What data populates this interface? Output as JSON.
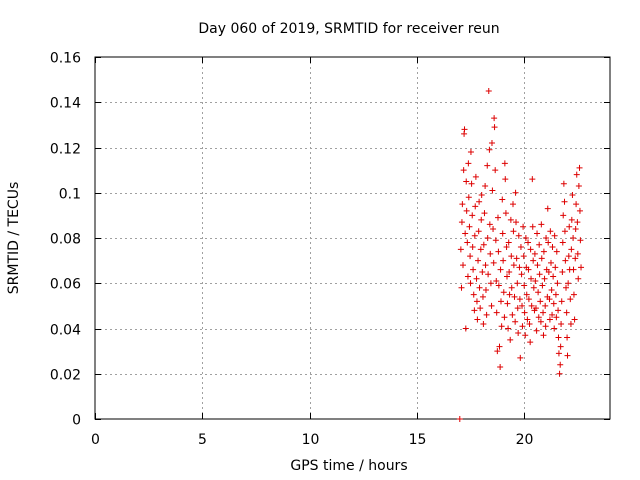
{
  "chart_data": {
    "type": "scatter",
    "title": "Day 060 of 2019, SRMTID for receiver reun",
    "xlabel": "GPS time / hours",
    "ylabel": "SRMTID / TECUs",
    "xlim": [
      0,
      24
    ],
    "ylim": [
      0,
      0.16
    ],
    "xticks": [
      0,
      5,
      10,
      15,
      20
    ],
    "xtick_labels": [
      "0",
      "5",
      "10",
      "15",
      "20"
    ],
    "yticks": [
      0,
      0.02,
      0.04,
      0.06,
      0.08,
      0.1,
      0.12,
      0.14,
      0.16
    ],
    "ytick_labels": [
      "0",
      "0.02",
      "0.04",
      "0.06",
      "0.08",
      "0.1",
      "0.12",
      "0.14",
      "0.16"
    ],
    "grid": true,
    "marker": "plus",
    "color": "#dd0000",
    "series": [
      {
        "name": "SRMTID",
        "points": [
          [
            17.0,
            0.0
          ],
          [
            17.05,
            0.075
          ],
          [
            17.08,
            0.058
          ],
          [
            17.1,
            0.087
          ],
          [
            17.12,
            0.095
          ],
          [
            17.15,
            0.068
          ],
          [
            17.18,
            0.11
          ],
          [
            17.2,
            0.126
          ],
          [
            17.22,
            0.128
          ],
          [
            17.25,
            0.082
          ],
          [
            17.28,
            0.04
          ],
          [
            17.3,
            0.105
          ],
          [
            17.32,
            0.092
          ],
          [
            17.35,
            0.078
          ],
          [
            17.38,
            0.063
          ],
          [
            17.4,
            0.113
          ],
          [
            17.42,
            0.098
          ],
          [
            17.45,
            0.085
          ],
          [
            17.48,
            0.072
          ],
          [
            17.5,
            0.06
          ],
          [
            17.52,
            0.118
          ],
          [
            17.55,
            0.104
          ],
          [
            17.58,
            0.09
          ],
          [
            17.6,
            0.076
          ],
          [
            17.62,
            0.066
          ],
          [
            17.65,
            0.055
          ],
          [
            17.68,
            0.048
          ],
          [
            17.7,
            0.081
          ],
          [
            17.72,
            0.094
          ],
          [
            17.75,
            0.107
          ],
          [
            17.78,
            0.062
          ],
          [
            17.8,
            0.052
          ],
          [
            17.82,
            0.044
          ],
          [
            17.85,
            0.07
          ],
          [
            17.88,
            0.083
          ],
          [
            17.9,
            0.096
          ],
          [
            17.92,
            0.058
          ],
          [
            17.95,
            0.049
          ],
          [
            17.98,
            0.075
          ],
          [
            18.0,
            0.088
          ],
          [
            18.02,
            0.099
          ],
          [
            18.05,
            0.065
          ],
          [
            18.08,
            0.054
          ],
          [
            18.1,
            0.042
          ],
          [
            18.12,
            0.077
          ],
          [
            18.15,
            0.091
          ],
          [
            18.18,
            0.103
          ],
          [
            18.2,
            0.068
          ],
          [
            18.22,
            0.057
          ],
          [
            18.25,
            0.046
          ],
          [
            18.28,
            0.112
          ],
          [
            18.3,
            0.08
          ],
          [
            18.32,
            0.064
          ],
          [
            18.35,
            0.145
          ],
          [
            18.38,
            0.119
          ],
          [
            18.4,
            0.086
          ],
          [
            18.42,
            0.073
          ],
          [
            18.45,
            0.06
          ],
          [
            18.48,
            0.05
          ],
          [
            18.5,
            0.122
          ],
          [
            18.52,
            0.101
          ],
          [
            18.55,
            0.084
          ],
          [
            18.58,
            0.069
          ],
          [
            18.6,
            0.133
          ],
          [
            18.62,
            0.129
          ],
          [
            18.65,
            0.11
          ],
          [
            18.68,
            0.079
          ],
          [
            18.7,
            0.061
          ],
          [
            18.72,
            0.047
          ],
          [
            18.75,
            0.03
          ],
          [
            18.78,
            0.089
          ],
          [
            18.8,
            0.074
          ],
          [
            18.82,
            0.059
          ],
          [
            18.85,
            0.032
          ],
          [
            18.88,
            0.023
          ],
          [
            18.9,
            0.066
          ],
          [
            18.92,
            0.052
          ],
          [
            18.95,
            0.041
          ],
          [
            18.98,
            0.097
          ],
          [
            19.0,
            0.082
          ],
          [
            19.02,
            0.07
          ],
          [
            19.05,
            0.056
          ],
          [
            19.08,
            0.045
          ],
          [
            19.1,
            0.113
          ],
          [
            19.12,
            0.106
          ],
          [
            19.15,
            0.091
          ],
          [
            19.18,
            0.076
          ],
          [
            19.2,
            0.063
          ],
          [
            19.22,
            0.051
          ],
          [
            19.25,
            0.04
          ],
          [
            19.28,
            0.078
          ],
          [
            19.3,
            0.065
          ],
          [
            19.32,
            0.055
          ],
          [
            19.35,
            0.035
          ],
          [
            19.38,
            0.088
          ],
          [
            19.4,
            0.072
          ],
          [
            19.42,
            0.058
          ],
          [
            19.45,
            0.046
          ],
          [
            19.48,
            0.095
          ],
          [
            19.5,
            0.083
          ],
          [
            19.52,
            0.068
          ],
          [
            19.55,
            0.054
          ],
          [
            19.58,
            0.043
          ],
          [
            19.6,
            0.1
          ],
          [
            19.62,
            0.087
          ],
          [
            19.65,
            0.071
          ],
          [
            19.68,
            0.06
          ],
          [
            19.7,
            0.049
          ],
          [
            19.72,
            0.038
          ],
          [
            19.75,
            0.081
          ],
          [
            19.78,
            0.067
          ],
          [
            19.8,
            0.053
          ],
          [
            19.82,
            0.027
          ],
          [
            19.85,
            0.076
          ],
          [
            19.88,
            0.064
          ],
          [
            19.9,
            0.05
          ],
          [
            19.92,
            0.041
          ],
          [
            19.95,
            0.085
          ],
          [
            19.98,
            0.072
          ],
          [
            20.0,
            0.059
          ],
          [
            20.02,
            0.047
          ],
          [
            20.05,
            0.037
          ],
          [
            20.08,
            0.08
          ],
          [
            20.1,
            0.067
          ],
          [
            20.12,
            0.055
          ],
          [
            20.15,
            0.044
          ],
          [
            20.18,
            0.078
          ],
          [
            20.2,
            0.066
          ],
          [
            20.22,
            0.053
          ],
          [
            20.25,
            0.042
          ],
          [
            20.28,
            0.034
          ],
          [
            20.3,
            0.075
          ],
          [
            20.32,
            0.062
          ],
          [
            20.35,
            0.05
          ],
          [
            20.38,
            0.106
          ],
          [
            20.4,
            0.085
          ],
          [
            20.42,
            0.07
          ],
          [
            20.45,
            0.058
          ],
          [
            20.48,
            0.048
          ],
          [
            20.5,
            0.073
          ],
          [
            20.52,
            0.061
          ],
          [
            20.55,
            0.049
          ],
          [
            20.58,
            0.039
          ],
          [
            20.6,
            0.082
          ],
          [
            20.62,
            0.068
          ],
          [
            20.65,
            0.056
          ],
          [
            20.68,
            0.045
          ],
          [
            20.7,
            0.077
          ],
          [
            20.72,
            0.064
          ],
          [
            20.75,
            0.052
          ],
          [
            20.78,
            0.043
          ],
          [
            20.8,
            0.086
          ],
          [
            20.82,
            0.071
          ],
          [
            20.85,
            0.059
          ],
          [
            20.88,
            0.047
          ],
          [
            20.9,
            0.037
          ],
          [
            20.92,
            0.074
          ],
          [
            20.95,
            0.062
          ],
          [
            20.98,
            0.05
          ],
          [
            21.0,
            0.041
          ],
          [
            21.02,
            0.08
          ],
          [
            21.05,
            0.066
          ],
          [
            21.08,
            0.054
          ],
          [
            21.1,
            0.093
          ],
          [
            21.12,
            0.078
          ],
          [
            21.15,
            0.065
          ],
          [
            21.18,
            0.053
          ],
          [
            21.2,
            0.044
          ],
          [
            21.22,
            0.083
          ],
          [
            21.25,
            0.069
          ],
          [
            21.28,
            0.057
          ],
          [
            21.3,
            0.046
          ],
          [
            21.32,
            0.076
          ],
          [
            21.35,
            0.063
          ],
          [
            21.38,
            0.051
          ],
          [
            21.4,
            0.04
          ],
          [
            21.42,
            0.081
          ],
          [
            21.45,
            0.067
          ],
          [
            21.48,
            0.055
          ],
          [
            21.5,
            0.045
          ],
          [
            21.52,
            0.074
          ],
          [
            21.55,
            0.06
          ],
          [
            21.58,
            0.048
          ],
          [
            21.6,
            0.036
          ],
          [
            21.62,
            0.029
          ],
          [
            21.65,
            0.02
          ],
          [
            21.68,
            0.024
          ],
          [
            21.7,
            0.032
          ],
          [
            21.72,
            0.042
          ],
          [
            21.75,
            0.052
          ],
          [
            21.78,
            0.065
          ],
          [
            21.8,
            0.078
          ],
          [
            21.82,
            0.09
          ],
          [
            21.85,
            0.104
          ],
          [
            21.88,
            0.096
          ],
          [
            21.9,
            0.083
          ],
          [
            21.92,
            0.07
          ],
          [
            21.95,
            0.058
          ],
          [
            21.98,
            0.047
          ],
          [
            22.0,
            0.036
          ],
          [
            22.02,
            0.028
          ],
          [
            22.05,
            0.06
          ],
          [
            22.08,
            0.072
          ],
          [
            22.1,
            0.085
          ],
          [
            22.12,
            0.066
          ],
          [
            22.15,
            0.053
          ],
          [
            22.18,
            0.042
          ],
          [
            22.2,
            0.075
          ],
          [
            22.22,
            0.088
          ],
          [
            22.25,
            0.099
          ],
          [
            22.28,
            0.08
          ],
          [
            22.3,
            0.066
          ],
          [
            22.32,
            0.055
          ],
          [
            22.35,
            0.044
          ],
          [
            22.38,
            0.071
          ],
          [
            22.4,
            0.084
          ],
          [
            22.42,
            0.095
          ],
          [
            22.45,
            0.108
          ],
          [
            22.48,
            0.087
          ],
          [
            22.5,
            0.073
          ],
          [
            22.52,
            0.062
          ],
          [
            22.55,
            0.103
          ],
          [
            22.58,
            0.111
          ],
          [
            22.6,
            0.092
          ],
          [
            22.62,
            0.079
          ],
          [
            22.65,
            0.067
          ]
        ]
      }
    ]
  }
}
